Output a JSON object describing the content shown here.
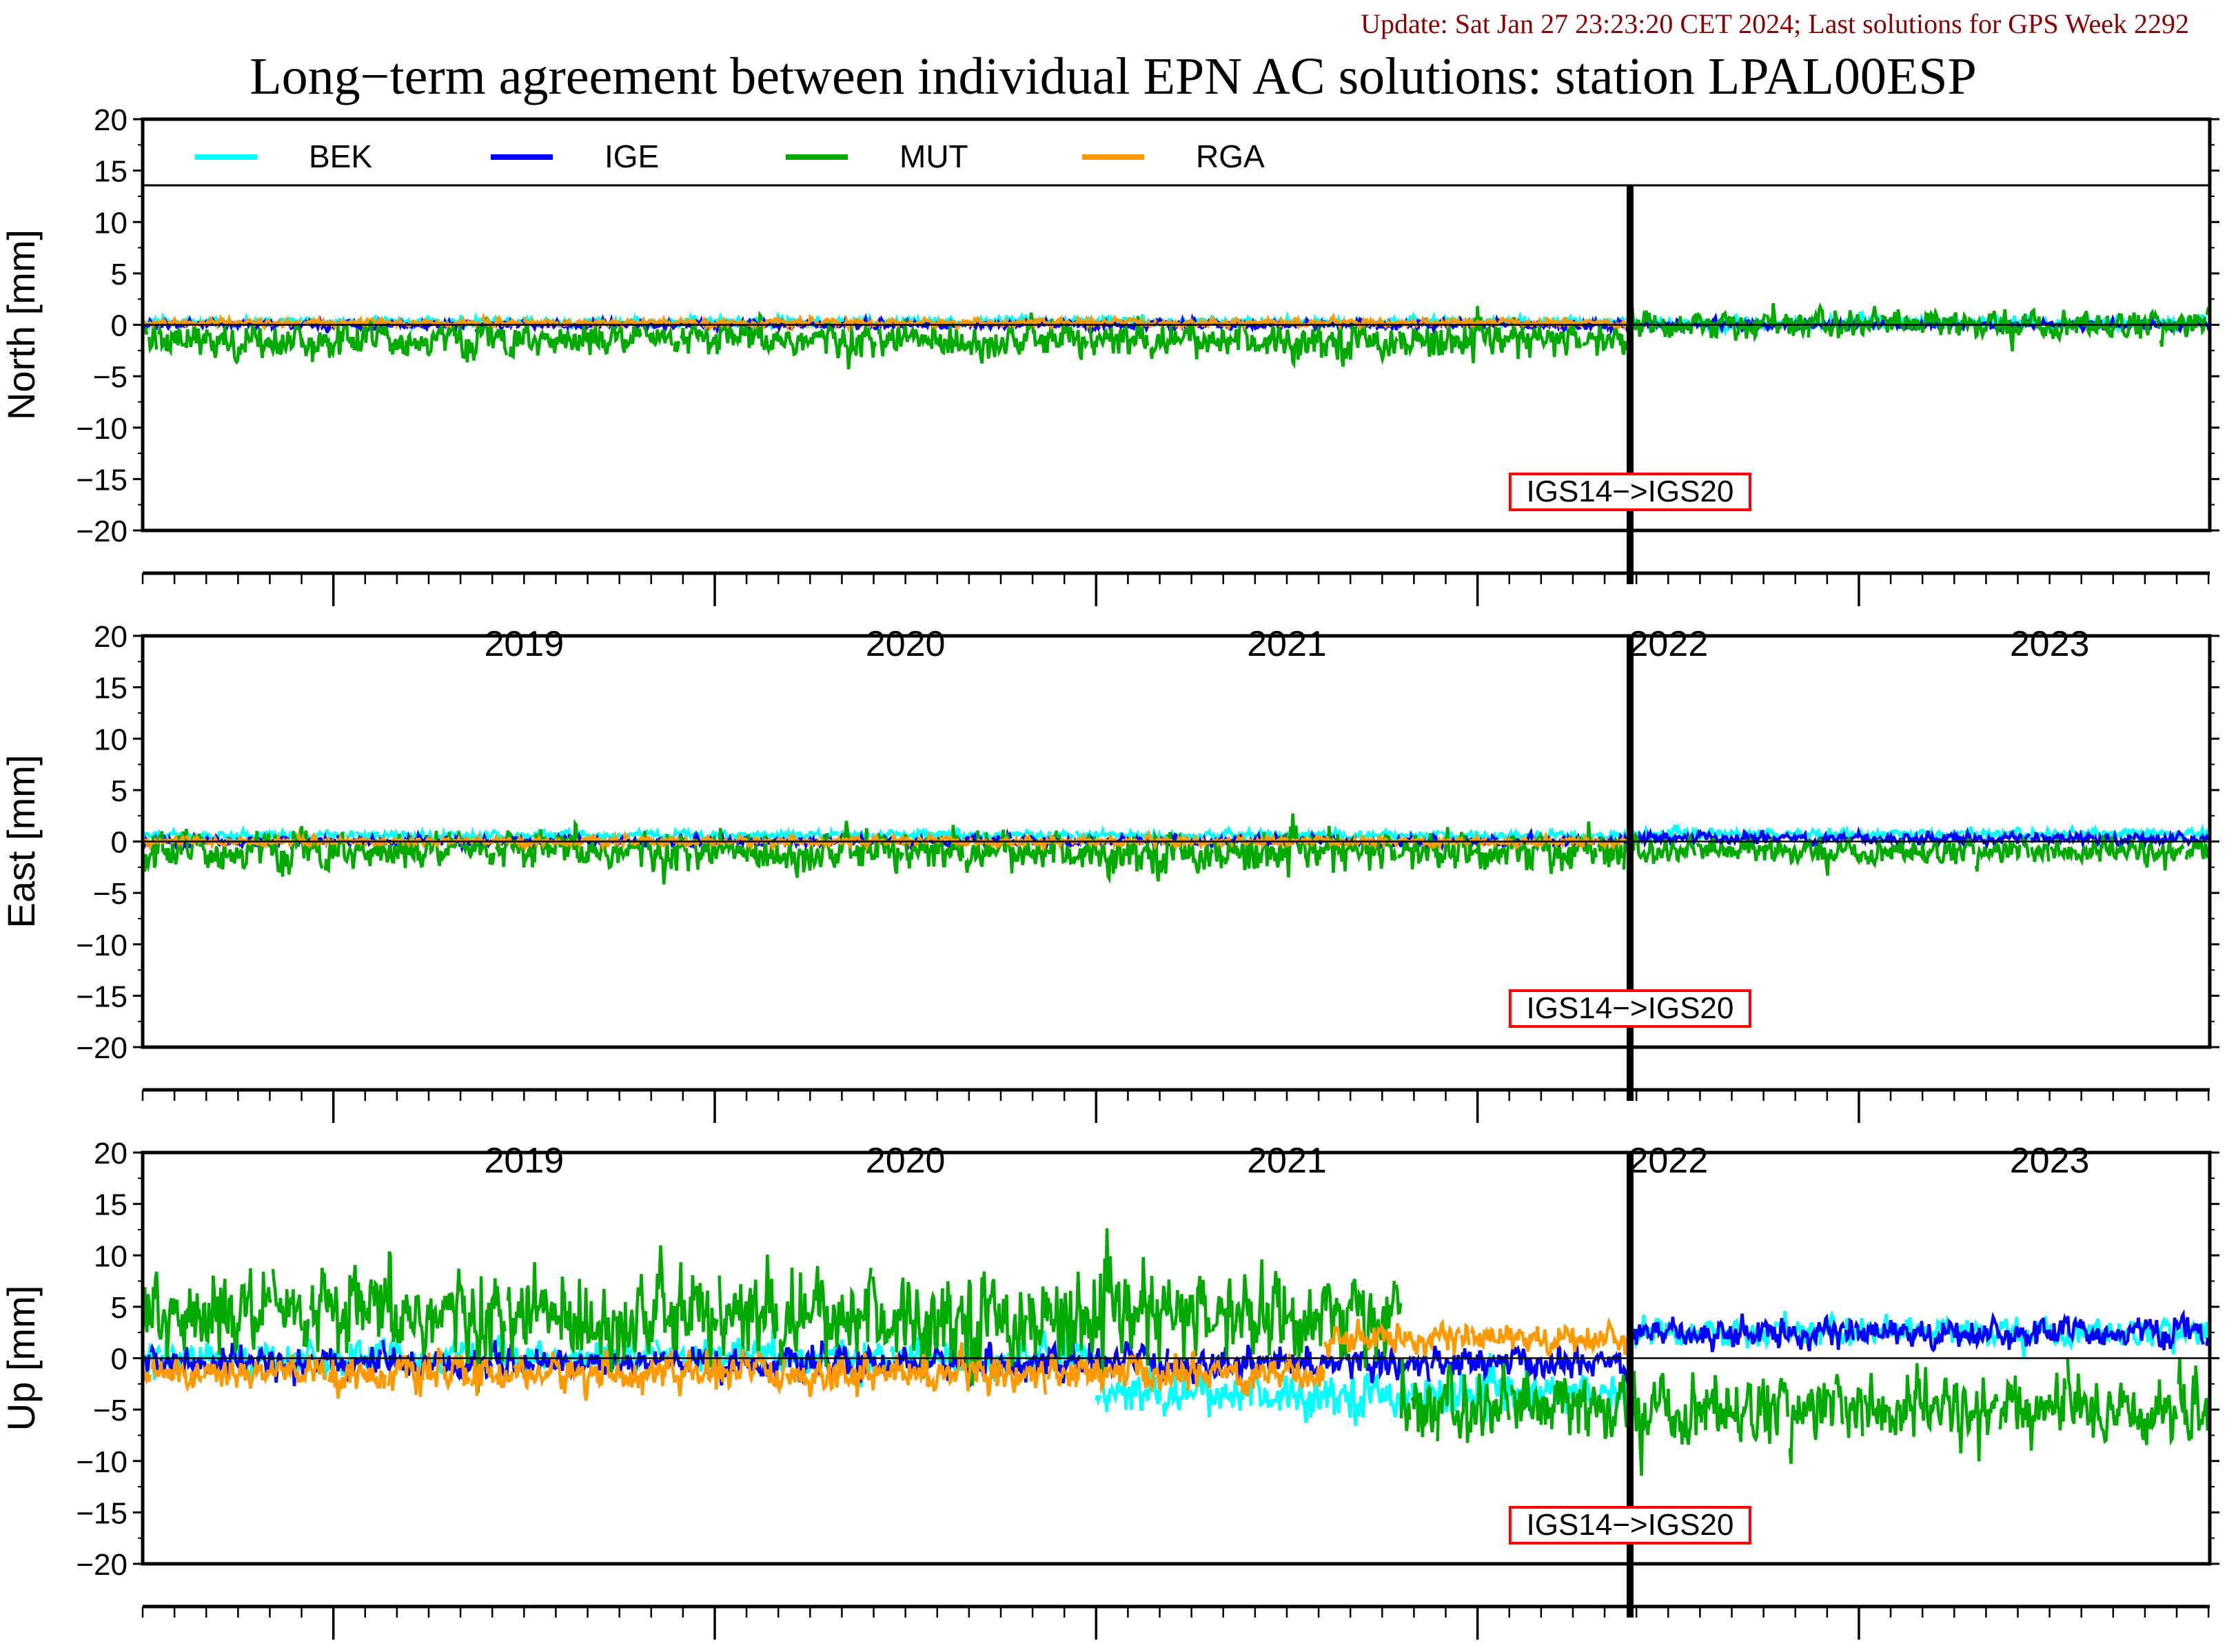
{
  "header": {
    "update_text": "Update: Sat Jan 27 23:23:20 CET 2024; Last solutions for GPS Week 2292",
    "title": "Long−term agreement between individual EPN AC solutions: station LPAL00ESP"
  },
  "colors": {
    "BEK": "#00ffff",
    "IGE": "#0000ff",
    "MUT": "#00aa00",
    "RGA": "#ff9900",
    "update_text": "#8b0000",
    "annotation_border": "#ff0000"
  },
  "chart_data": {
    "type": "line",
    "series_names": [
      "BEK",
      "IGE",
      "MUT",
      "RGA"
    ],
    "legend_position": "top, inside first panel",
    "x_range": [
      2018.5,
      2023.92
    ],
    "x_ticks": [
      "2019",
      "2020",
      "2021",
      "2022",
      "2023"
    ],
    "y_ticks": [
      "20",
      "15",
      "10",
      "5",
      "0",
      "−5",
      "−10",
      "−15",
      "−20"
    ],
    "reference_change": {
      "x": 2022.4,
      "label": "IGS14−>IGS20"
    },
    "panels": [
      {
        "ylabel": "North [mm]",
        "ylim": [
          -20,
          20
        ],
        "series": [
          {
            "name": "BEK",
            "segments": [
              {
                "x0": 2018.5,
                "x1": 2022.4,
                "mean": 0.3,
                "amp": 0.6
              },
              {
                "x0": 2022.4,
                "x1": 2023.92,
                "mean": 0.2,
                "amp": 0.8
              }
            ]
          },
          {
            "name": "IGE",
            "segments": [
              {
                "x0": 2018.5,
                "x1": 2022.4,
                "mean": 0.0,
                "amp": 0.6
              },
              {
                "x0": 2022.4,
                "x1": 2023.92,
                "mean": 0.0,
                "amp": 0.6
              }
            ]
          },
          {
            "name": "MUT",
            "segments": [
              {
                "x0": 2018.5,
                "x1": 2022.4,
                "mean": -1.5,
                "amp": 2.5
              },
              {
                "x0": 2022.4,
                "x1": 2023.92,
                "mean": 0.0,
                "amp": 2.0
              }
            ]
          },
          {
            "name": "RGA",
            "segments": [
              {
                "x0": 2018.5,
                "x1": 2022.4,
                "mean": 0.2,
                "amp": 0.5
              }
            ]
          }
        ]
      },
      {
        "ylabel": "East [mm]",
        "ylim": [
          -20,
          20
        ],
        "series": [
          {
            "name": "BEK",
            "segments": [
              {
                "x0": 2018.5,
                "x1": 2022.4,
                "mean": 0.6,
                "amp": 0.6
              },
              {
                "x0": 2022.4,
                "x1": 2023.92,
                "mean": 0.7,
                "amp": 0.7
              }
            ]
          },
          {
            "name": "IGE",
            "segments": [
              {
                "x0": 2018.5,
                "x1": 2022.4,
                "mean": 0.0,
                "amp": 0.7
              },
              {
                "x0": 2022.4,
                "x1": 2023.92,
                "mean": 0.3,
                "amp": 0.8
              }
            ]
          },
          {
            "name": "MUT",
            "segments": [
              {
                "x0": 2018.5,
                "x1": 2022.4,
                "mean": -1.0,
                "amp": 2.8
              },
              {
                "x0": 2022.4,
                "x1": 2023.92,
                "mean": -1.0,
                "amp": 1.8
              }
            ]
          },
          {
            "name": "RGA",
            "segments": [
              {
                "x0": 2018.5,
                "x1": 2022.4,
                "mean": 0.0,
                "amp": 0.6
              }
            ]
          }
        ]
      },
      {
        "ylabel": "Up [mm]",
        "ylim": [
          -20,
          20
        ],
        "series": [
          {
            "name": "BEK",
            "segments": [
              {
                "x0": 2018.5,
                "x1": 2021.0,
                "mean": 0.0,
                "amp": 2.5
              },
              {
                "x0": 2021.0,
                "x1": 2022.4,
                "mean": -3.5,
                "amp": 3.0
              },
              {
                "x0": 2022.4,
                "x1": 2023.92,
                "mean": 2.5,
                "amp": 2.0
              }
            ]
          },
          {
            "name": "IGE",
            "segments": [
              {
                "x0": 2018.5,
                "x1": 2022.4,
                "mean": -0.5,
                "amp": 2.2
              },
              {
                "x0": 2022.4,
                "x1": 2023.92,
                "mean": 2.5,
                "amp": 2.0
              }
            ]
          },
          {
            "name": "MUT",
            "segments": [
              {
                "x0": 2018.5,
                "x1": 2021.8,
                "mean": 4.0,
                "amp": 6.5
              },
              {
                "x0": 2021.8,
                "x1": 2023.92,
                "mean": -5.0,
                "amp": 5.0
              }
            ]
          },
          {
            "name": "RGA",
            "segments": [
              {
                "x0": 2018.5,
                "x1": 2021.6,
                "mean": -1.5,
                "amp": 2.5
              },
              {
                "x0": 2021.6,
                "x1": 2022.4,
                "mean": 2.0,
                "amp": 2.0
              }
            ]
          }
        ]
      }
    ]
  }
}
